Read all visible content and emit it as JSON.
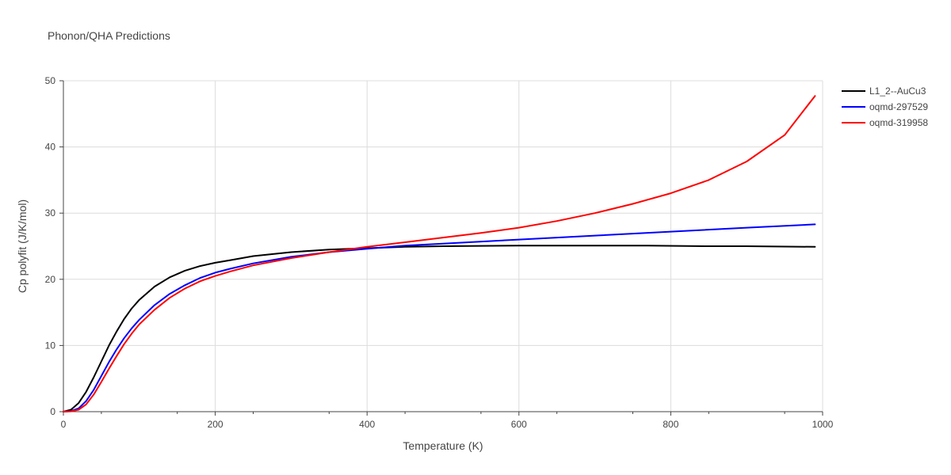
{
  "chart_data": {
    "type": "line",
    "title": "Phonon/QHA Predictions",
    "xlabel": "Temperature (K)",
    "ylabel": "Cp polyfit (J/K/mol)",
    "xlim": [
      0,
      1000
    ],
    "ylim": [
      0,
      50
    ],
    "x_ticks": [
      0,
      200,
      400,
      600,
      800,
      1000
    ],
    "y_ticks": [
      0,
      10,
      20,
      30,
      40,
      50
    ],
    "grid": true,
    "legend_position": "top-right",
    "series": [
      {
        "name": "L1_2--AuCu3",
        "color": "#000000",
        "x": [
          0,
          10,
          20,
          30,
          40,
          50,
          60,
          70,
          80,
          90,
          100,
          120,
          140,
          160,
          180,
          200,
          220,
          250,
          300,
          350,
          400,
          450,
          500,
          600,
          700,
          770,
          850,
          900,
          990
        ],
        "y": [
          0,
          0.3,
          1.3,
          3.0,
          5.2,
          7.6,
          10.0,
          12.1,
          14.0,
          15.6,
          16.9,
          18.9,
          20.3,
          21.3,
          22.0,
          22.5,
          22.9,
          23.5,
          24.1,
          24.5,
          24.7,
          24.9,
          25.0,
          25.1,
          25.1,
          25.1,
          25.0,
          25.0,
          24.9
        ]
      },
      {
        "name": "oqmd-297529",
        "color": "#0000ff",
        "x": [
          0,
          10,
          20,
          30,
          40,
          50,
          60,
          70,
          80,
          90,
          100,
          120,
          140,
          160,
          180,
          200,
          220,
          250,
          300,
          350,
          400,
          450,
          500,
          600,
          700,
          800,
          900,
          990
        ],
        "y": [
          0,
          0.1,
          0.5,
          1.6,
          3.3,
          5.4,
          7.5,
          9.4,
          11.1,
          12.6,
          13.9,
          16.1,
          17.8,
          19.1,
          20.2,
          21.0,
          21.6,
          22.4,
          23.4,
          24.1,
          24.6,
          25.1,
          25.4,
          26.0,
          26.6,
          27.2,
          27.8,
          28.3
        ]
      },
      {
        "name": "oqmd-319958",
        "color": "#ff0000",
        "x": [
          0,
          10,
          20,
          30,
          40,
          50,
          60,
          70,
          80,
          90,
          100,
          120,
          140,
          160,
          180,
          200,
          220,
          250,
          300,
          350,
          400,
          450,
          500,
          550,
          600,
          650,
          700,
          750,
          800,
          850,
          900,
          950,
          990
        ],
        "y": [
          0,
          0.05,
          0.3,
          1.1,
          2.6,
          4.5,
          6.5,
          8.4,
          10.2,
          11.8,
          13.2,
          15.4,
          17.2,
          18.6,
          19.7,
          20.5,
          21.2,
          22.1,
          23.2,
          24.1,
          24.9,
          25.6,
          26.3,
          27.0,
          27.8,
          28.8,
          30.0,
          31.4,
          33.0,
          35.0,
          37.8,
          41.8,
          47.7
        ]
      }
    ]
  }
}
